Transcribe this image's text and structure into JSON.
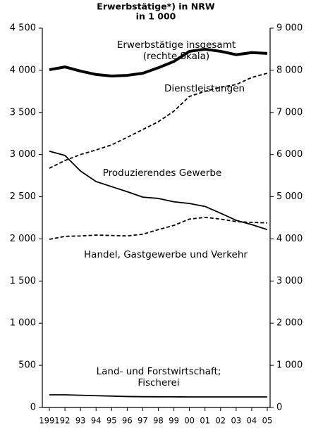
{
  "chart_data": {
    "type": "line",
    "title": "Erwerbstätige*) in NRW",
    "subtitle": "in 1 000",
    "categories": [
      "1991",
      "92",
      "93",
      "94",
      "95",
      "96",
      "97",
      "98",
      "99",
      "00",
      "01",
      "02",
      "03",
      "04",
      "05"
    ],
    "ylim": [
      0,
      4500
    ],
    "yticks": [
      {
        "value": 0,
        "label": "0"
      },
      {
        "value": 500,
        "label": "500"
      },
      {
        "value": 1000,
        "label": "1 000"
      },
      {
        "value": 1500,
        "label": "1 500"
      },
      {
        "value": 2000,
        "label": "2 000"
      },
      {
        "value": 2500,
        "label": "2 500"
      },
      {
        "value": 3000,
        "label": "3 000"
      },
      {
        "value": 3500,
        "label": "3 500"
      },
      {
        "value": 4000,
        "label": "4 000"
      },
      {
        "value": 4500,
        "label": "4 500"
      }
    ],
    "y2lim": [
      0,
      9000
    ],
    "y2ticks": [
      0,
      {
        "value": 1000,
        "label": "1 000"
      },
      {
        "value": 2000,
        "label": "2 000"
      },
      {
        "value": 3000,
        "label": "3 000"
      },
      {
        "value": 4000,
        "label": "4 000"
      },
      {
        "value": 5000,
        "label": "5 000"
      },
      {
        "value": 6000,
        "label": "6 000"
      },
      {
        "value": 7000,
        "label": "7 000"
      },
      {
        "value": 8000,
        "label": "8 000"
      },
      {
        "value": 9000,
        "label": "9 000"
      }
    ],
    "annotations": [
      "(rechte Skala)"
    ],
    "series": [
      {
        "name": "Erwerbstätige insgesamt",
        "color": "#000000",
        "axis": "y2",
        "width": 4,
        "dashed": false,
        "values": [
          8014,
          8080,
          7980,
          7900,
          7865,
          7880,
          7930,
          8060,
          8210,
          8450,
          8500,
          8450,
          8370,
          8420,
          8400
        ]
      },
      {
        "name": "Dienstleistungen",
        "color": "#000000",
        "width": 1.8,
        "dashed": true,
        "values": [
          2838,
          2930,
          3000,
          3055,
          3115,
          3205,
          3297,
          3390,
          3515,
          3690,
          3750,
          3800,
          3830,
          3915,
          3965
        ]
      },
      {
        "name": "Produzierendes Gewerbe",
        "color": "#000000",
        "width": 1.8,
        "dashed": false,
        "values": [
          3040,
          2990,
          2805,
          2680,
          2620,
          2560,
          2495,
          2480,
          2440,
          2420,
          2385,
          2305,
          2220,
          2170,
          2110
        ]
      },
      {
        "name": "Handel, Gastgewerbe und Verkehr",
        "color": "#000000",
        "width": 1.8,
        "dashed": true,
        "values": [
          1995,
          2030,
          2035,
          2045,
          2040,
          2035,
          2055,
          2110,
          2160,
          2235,
          2255,
          2235,
          2205,
          2195,
          2190
        ]
      },
      {
        "name": "Land- und Forstwirtschaft; Fischerei",
        "color": "#000000",
        "width": 1.8,
        "dashed": false,
        "values": [
          150,
          150,
          145,
          140,
          135,
          130,
          128,
          127,
          126,
          125,
          125,
          125,
          125,
          125,
          125
        ]
      }
    ]
  }
}
